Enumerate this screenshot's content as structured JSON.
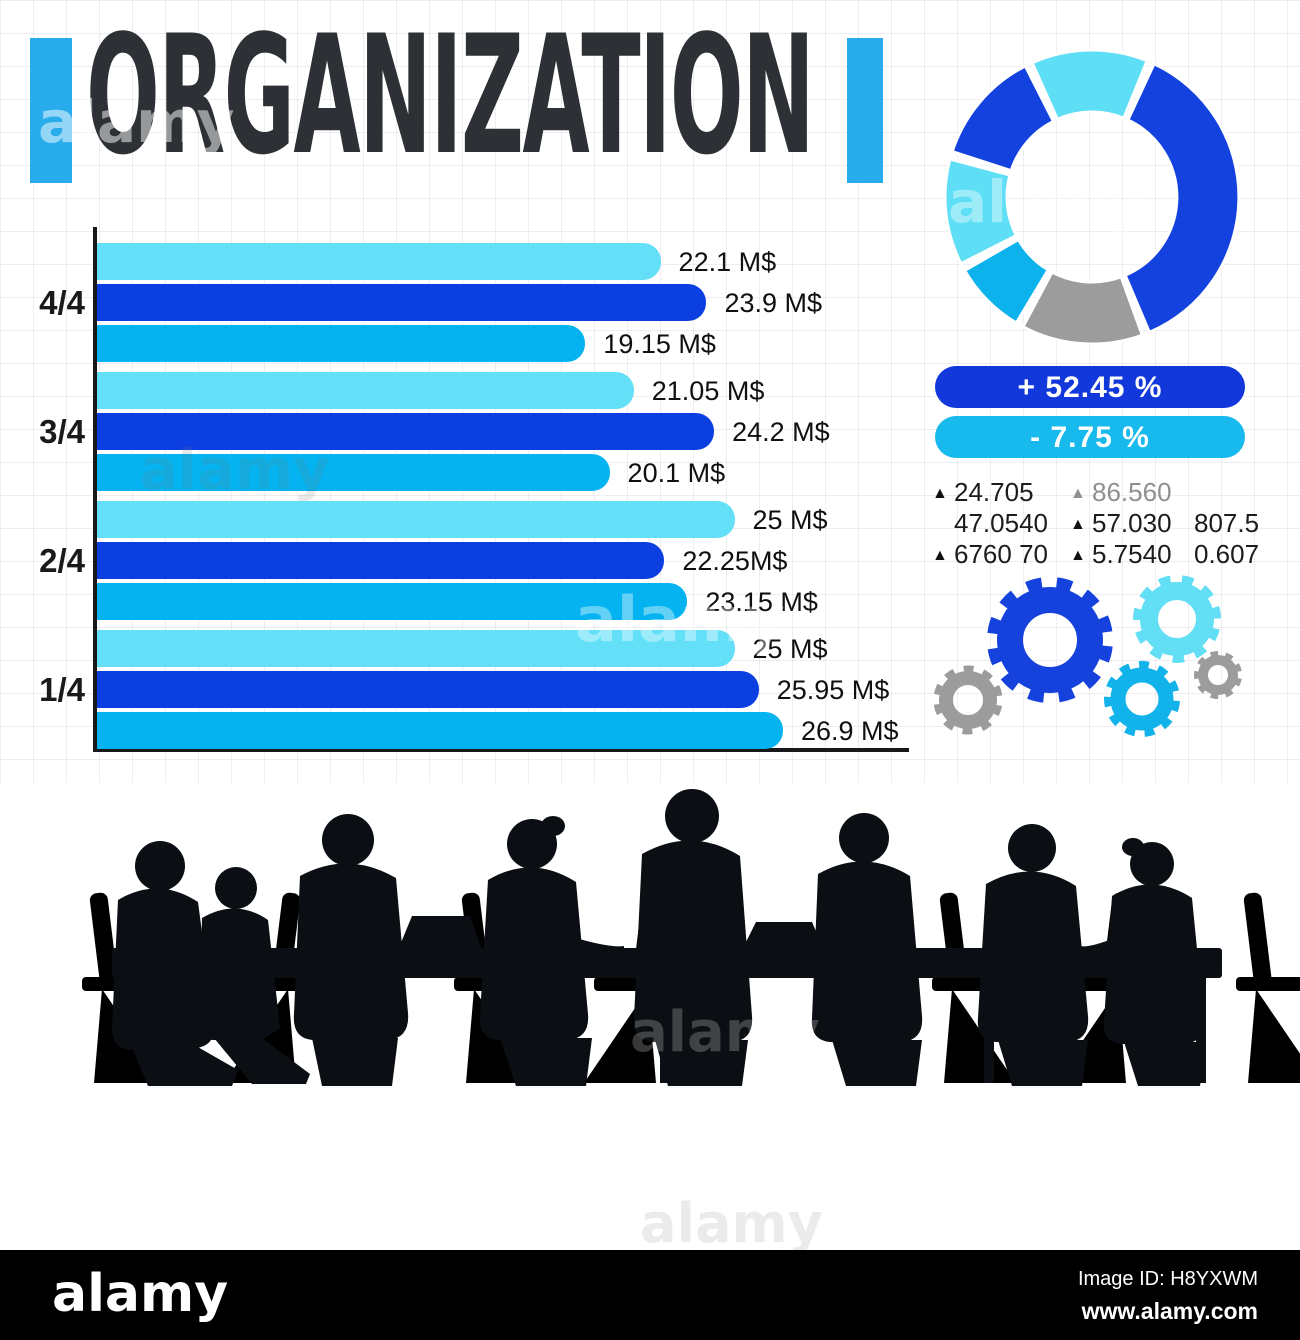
{
  "watermark_text": "alamy",
  "header": {
    "title": "ORGANIZATION",
    "accent_color": "#29ACEC",
    "title_color": "#2D3034"
  },
  "chart_data": {
    "bar_chart": {
      "type": "bar",
      "orientation": "horizontal",
      "title": "",
      "xlabel": "",
      "ylabel": "",
      "unit": "M$",
      "xlim": [
        0,
        30
      ],
      "grid": false,
      "categories": [
        "4/4",
        "3/4",
        "2/4",
        "1/4"
      ],
      "series": [
        {
          "name": "light-cyan",
          "color": "#63E0F8",
          "values": [
            22.1,
            21.05,
            25,
            25
          ]
        },
        {
          "name": "dark-blue",
          "color": "#0C3FE2",
          "values": [
            23.9,
            24.2,
            22.25,
            25.95
          ]
        },
        {
          "name": "medium-cyan",
          "color": "#04B3EF",
          "values": [
            19.15,
            20.1,
            23.15,
            26.9
          ]
        }
      ],
      "bar_labels": [
        [
          "22.1 M$",
          "23.9 M$",
          "19.15 M$"
        ],
        [
          "21.05 M$",
          "24.2 M$",
          "20.1 M$"
        ],
        [
          "25 M$",
          "22.25M$",
          "23.15 M$"
        ],
        [
          "25 M$",
          "25.95 M$",
          "26.9 M$"
        ]
      ]
    },
    "donut_chart": {
      "type": "pie",
      "style": "donut",
      "legend": "none",
      "segments": [
        {
          "name": "top-light-cyan",
          "color": "#5FDFF6",
          "start": 336,
          "end": 382,
          "share_deg": 46
        },
        {
          "name": "right-dark-blue",
          "color": "#1442DF",
          "start": 25,
          "end": 157,
          "share_deg": 132
        },
        {
          "name": "bottom-gray",
          "color": "#9C9C9C",
          "start": 160,
          "end": 208,
          "share_deg": 48
        },
        {
          "name": "medium-cyan",
          "color": "#0CB2EC",
          "start": 211,
          "end": 240,
          "share_deg": 29
        },
        {
          "name": "left-light-cyan",
          "color": "#5FDFF6",
          "start": 243,
          "end": 285,
          "share_deg": 42
        },
        {
          "name": "left-dark-blue",
          "color": "#1442DF",
          "start": 288,
          "end": 333,
          "share_deg": 45
        }
      ]
    }
  },
  "kpi_pills": [
    {
      "label": "+ 52.45 %",
      "color": "#1238DC"
    },
    {
      "label": "- 7.75 %",
      "color": "#18B9EC"
    }
  ],
  "stats": {
    "marker_glyph": "▲",
    "col1": [
      {
        "marker": true,
        "value": "24.705"
      },
      {
        "marker": false,
        "value": "47.0540"
      },
      {
        "marker": true,
        "value": "6760 70"
      }
    ],
    "col2": [
      {
        "marker": true,
        "value": "86.560",
        "muted": true
      },
      {
        "marker": true,
        "value": "57.030"
      },
      {
        "marker": true,
        "value": "5.7540"
      }
    ],
    "col3": [
      {
        "value": ""
      },
      {
        "value": "807.5"
      },
      {
        "value": "0.607"
      }
    ]
  },
  "gears": {
    "blue": "#1541DC",
    "cyan_light": "#63DFF5",
    "cyan": "#12B2EA",
    "gray": "#9C9C9C"
  },
  "footer": {
    "logo": "alamy",
    "image_id": "Image ID: H8YXWM",
    "url": "www.alamy.com"
  }
}
